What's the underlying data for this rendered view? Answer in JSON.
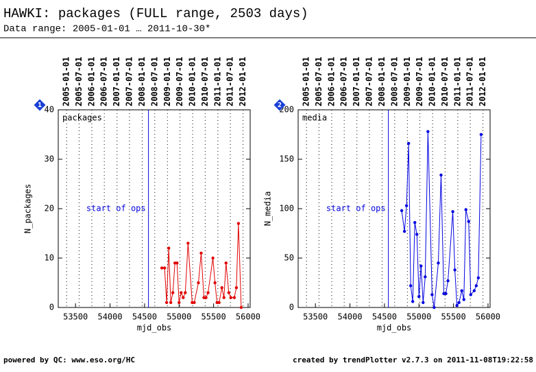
{
  "header": {
    "title": "HAWKI: packages (FULL range, 2503 days)",
    "subtitle": "Data range: 2005-01-01 … 2011-10-30*"
  },
  "footer": {
    "left": "powered by QC: www.eso.org/HC",
    "right": "created by trendPlotter v2.7.3 on 2011-11-08T19:22:58"
  },
  "chart_data": [
    {
      "type": "line",
      "badge": "1",
      "panel_label": "packages",
      "xlabel": "mjd_obs",
      "ylabel": "N_packages",
      "color": "#e00000",
      "x": [
        54750,
        54790,
        54820,
        54850,
        54880,
        54910,
        54940,
        54970,
        55000,
        55030,
        55060,
        55090,
        55130,
        55190,
        55220,
        55280,
        55320,
        55360,
        55390,
        55420,
        55490,
        55520,
        55550,
        55580,
        55620,
        55650,
        55680,
        55720,
        55750,
        55800,
        55830,
        55860,
        55900
      ],
      "values": [
        8,
        8,
        1,
        12,
        1,
        3,
        9,
        9,
        1,
        3,
        2,
        3,
        13,
        1,
        1,
        5,
        11,
        2,
        2,
        3,
        10,
        5,
        1,
        1,
        4,
        2,
        9,
        3,
        2,
        2,
        4,
        17,
        0
      ],
      "xlim": [
        53250,
        56030
      ],
      "ylim": [
        0,
        40
      ],
      "xticks": [
        53500,
        54000,
        54500,
        55000,
        55500,
        56000
      ],
      "yticks": [
        0,
        10,
        20,
        30,
        40
      ],
      "top_xticks": [
        {
          "value": 53371,
          "label": "2005-01-01"
        },
        {
          "value": 53552,
          "label": "2005-07-01"
        },
        {
          "value": 53736,
          "label": "2006-01-01"
        },
        {
          "value": 53917,
          "label": "2006-07-01"
        },
        {
          "value": 54101,
          "label": "2007-01-01"
        },
        {
          "value": 54282,
          "label": "2007-07-01"
        },
        {
          "value": 54466,
          "label": "2008-01-01"
        },
        {
          "value": 54648,
          "label": "2008-07-01"
        },
        {
          "value": 54832,
          "label": "2009-01-01"
        },
        {
          "value": 55013,
          "label": "2009-07-01"
        },
        {
          "value": 55197,
          "label": "2010-01-01"
        },
        {
          "value": 55378,
          "label": "2010-07-01"
        },
        {
          "value": 55562,
          "label": "2011-01-01"
        },
        {
          "value": 55743,
          "label": "2011-07-01"
        },
        {
          "value": 55927,
          "label": "2012-01-01"
        }
      ],
      "vline": {
        "value": 54557,
        "label": "start of ops",
        "label_y": 20
      }
    },
    {
      "type": "line",
      "badge": "2",
      "panel_label": "media",
      "xlabel": "mjd_obs",
      "ylabel": "N_media",
      "color": "#0000e0",
      "x": [
        54750,
        54790,
        54820,
        54850,
        54880,
        54910,
        54940,
        54970,
        55000,
        55030,
        55060,
        55090,
        55130,
        55190,
        55220,
        55280,
        55320,
        55360,
        55390,
        55420,
        55490,
        55520,
        55550,
        55580,
        55620,
        55650,
        55680,
        55720,
        55750,
        55800,
        55830,
        55860,
        55900
      ],
      "values": [
        98,
        77,
        103,
        166,
        22,
        6,
        86,
        74,
        11,
        42,
        5,
        31,
        178,
        13,
        0,
        45,
        134,
        14,
        14,
        27,
        97,
        38,
        2,
        5,
        17,
        8,
        99,
        87,
        13,
        17,
        22,
        30,
        175
      ],
      "xlim": [
        53250,
        56030
      ],
      "ylim": [
        0,
        200
      ],
      "xticks": [
        53500,
        54000,
        54500,
        55000,
        55500,
        56000
      ],
      "yticks": [
        0,
        50,
        100,
        150,
        200
      ],
      "top_xticks": [
        {
          "value": 53371,
          "label": "2005-01-01"
        },
        {
          "value": 53552,
          "label": "2005-07-01"
        },
        {
          "value": 53736,
          "label": "2006-01-01"
        },
        {
          "value": 53917,
          "label": "2006-07-01"
        },
        {
          "value": 54101,
          "label": "2007-01-01"
        },
        {
          "value": 54282,
          "label": "2007-07-01"
        },
        {
          "value": 54466,
          "label": "2008-01-01"
        },
        {
          "value": 54648,
          "label": "2008-07-01"
        },
        {
          "value": 54832,
          "label": "2009-01-01"
        },
        {
          "value": 55013,
          "label": "2009-07-01"
        },
        {
          "value": 55197,
          "label": "2010-01-01"
        },
        {
          "value": 55378,
          "label": "2010-07-01"
        },
        {
          "value": 55562,
          "label": "2011-01-01"
        },
        {
          "value": 55743,
          "label": "2011-07-01"
        },
        {
          "value": 55927,
          "label": "2012-01-01"
        }
      ],
      "vline": {
        "value": 54557,
        "label": "start of ops",
        "label_y": 100
      }
    }
  ]
}
